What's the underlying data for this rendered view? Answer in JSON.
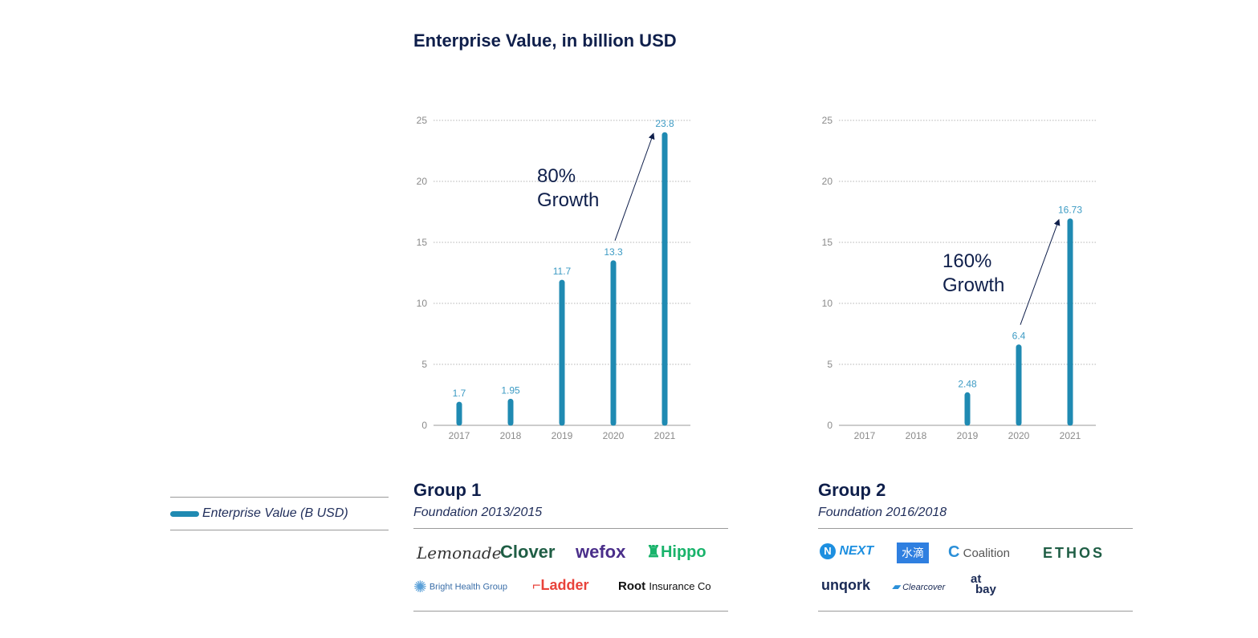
{
  "title": "Enterprise Value, in billion USD",
  "chart_data": [
    {
      "type": "bar",
      "categories": [
        "2017",
        "2018",
        "2019",
        "2020",
        "2021"
      ],
      "values": [
        1.7,
        1.95,
        11.7,
        13.3,
        23.8
      ],
      "value_labels": [
        "1.7",
        "1.95",
        "11.7",
        "13.3",
        "23.8"
      ],
      "ylim": [
        0,
        25
      ],
      "yticks": [
        "0",
        "5",
        "10",
        "15",
        "20",
        "25"
      ],
      "grid": "dotted",
      "bar_color": "#1f8ab2",
      "annotation": {
        "line1": "80%",
        "line2": "Growth",
        "from_category": "2020",
        "to_category": "2021"
      }
    },
    {
      "type": "bar",
      "categories": [
        "2017",
        "2018",
        "2019",
        "2020",
        "2021"
      ],
      "values": [
        null,
        null,
        2.48,
        6.4,
        16.73
      ],
      "value_labels": [
        "",
        "",
        "2.48",
        "6.4",
        "16.73"
      ],
      "ylim": [
        0,
        25
      ],
      "yticks": [
        "0",
        "5",
        "10",
        "15",
        "20",
        "25"
      ],
      "grid": "dotted",
      "bar_color": "#1f8ab2",
      "annotation": {
        "line1": "160%",
        "line2": "Growth",
        "from_category": "2020",
        "to_category": "2021"
      }
    }
  ],
  "legend": {
    "label": "Enterprise Value (B USD)",
    "color": "#1f8ab2"
  },
  "groups": [
    {
      "title": "Group 1",
      "subtitle": "Foundation 2013/2015",
      "logos": [
        "Lemonade",
        "Clover",
        "wefox",
        "Hippo",
        "Bright Health Group",
        "Ladder",
        "Root",
        "Insurance Co"
      ]
    },
    {
      "title": "Group 2",
      "subtitle": "Foundation 2016/2018",
      "logos": [
        "NEXT",
        "水滴",
        "Coalition",
        "ETHOS",
        "unqork",
        "Clearcover",
        "at",
        "bay"
      ]
    }
  ]
}
